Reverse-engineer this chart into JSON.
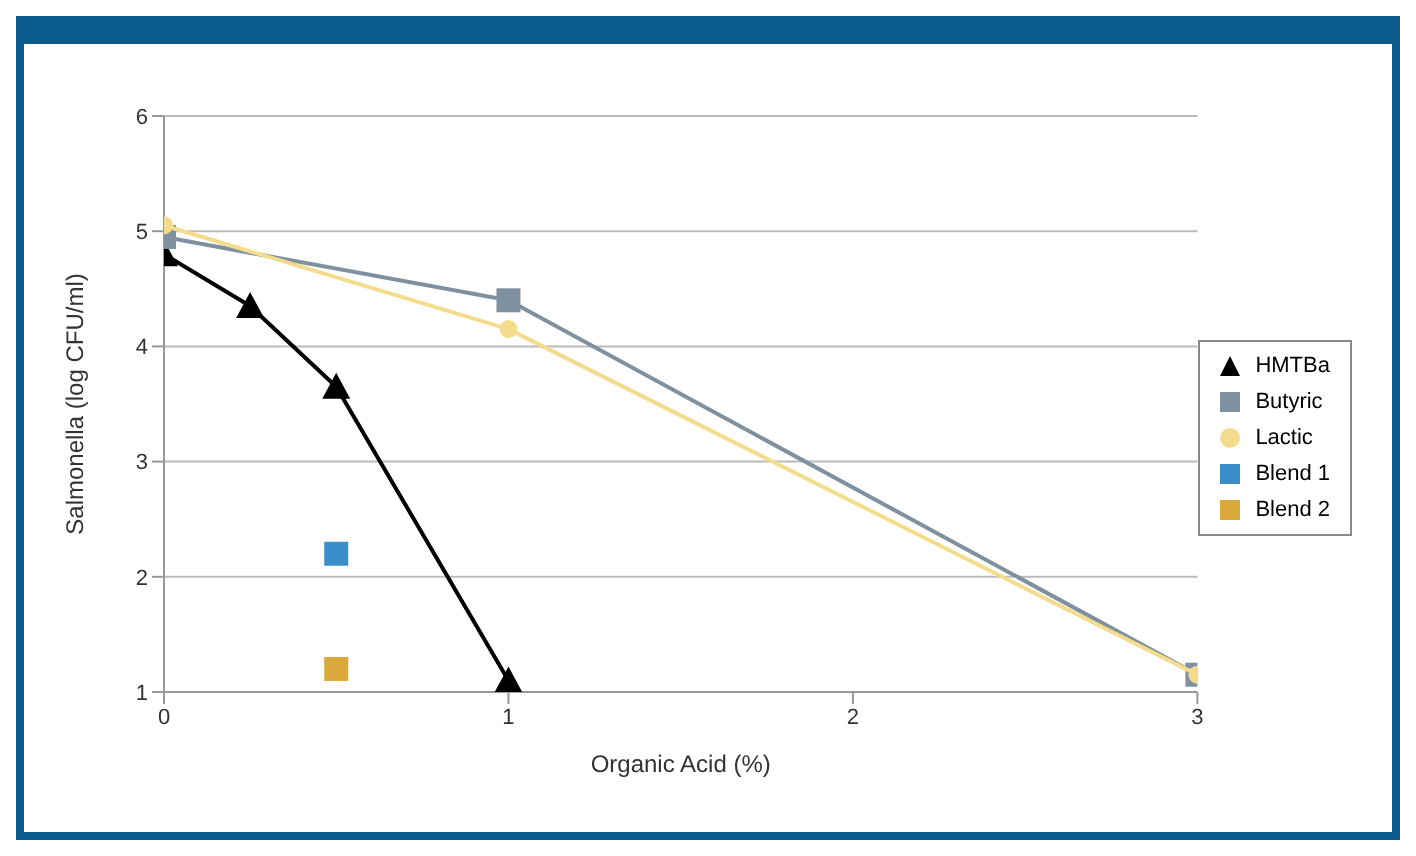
{
  "chart_data": {
    "type": "line",
    "xlabel": "Organic Acid (%)",
    "ylabel": "Salmonella (log CFU/ml)",
    "xlim": [
      0,
      3
    ],
    "xticks": [
      0,
      1,
      2,
      3
    ],
    "ylim": [
      1,
      6
    ],
    "yticks": [
      1,
      2,
      3,
      4,
      5,
      6
    ],
    "grid": "y",
    "legend": "right",
    "series": [
      {
        "name": "HMTBa",
        "color": "#000000",
        "type": "line",
        "marker": "triangle",
        "x": [
          0,
          0.25,
          0.5,
          1
        ],
        "values": [
          4.8,
          4.35,
          3.65,
          1.1
        ]
      },
      {
        "name": "Butyric",
        "color": "#7f919e",
        "type": "line",
        "marker": "square",
        "x": [
          0,
          1,
          3
        ],
        "values": [
          4.95,
          4.4,
          1.15
        ]
      },
      {
        "name": "Lactic",
        "color": "#f5dc8c",
        "type": "line",
        "marker": "circle",
        "x": [
          0,
          1,
          3
        ],
        "values": [
          5.05,
          4.15,
          1.15
        ]
      },
      {
        "name": "Blend 1",
        "color": "#3a8fc8",
        "type": "scatter",
        "marker": "square",
        "x": [
          0.5
        ],
        "values": [
          2.2
        ]
      },
      {
        "name": "Blend 2",
        "color": "#d9a93a",
        "type": "scatter",
        "marker": "square",
        "x": [
          0.5
        ],
        "values": [
          1.2
        ]
      }
    ]
  }
}
